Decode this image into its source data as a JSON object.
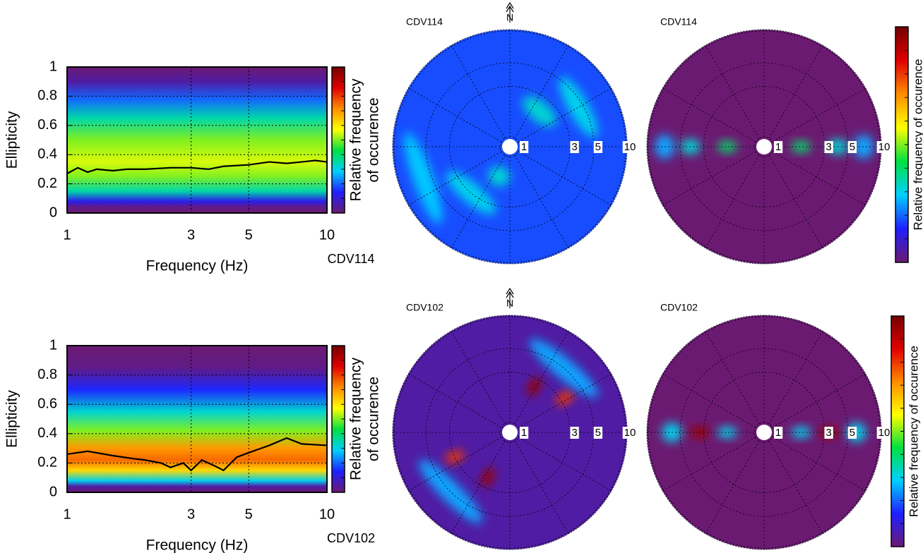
{
  "colormap": [
    "#6b1a72",
    "#1f1fff",
    "#00d0ff",
    "#00e040",
    "#ffff00",
    "#ff8c00",
    "#e00000",
    "#720000"
  ],
  "chart_data": [
    {
      "type": "heatmap",
      "station": "CDV114",
      "xlabel": "Frequency (Hz)",
      "ylabel": "Ellipticity",
      "colorbar_label": [
        "Relative frequency",
        "of occurence"
      ],
      "xlim": [
        1,
        10
      ],
      "xscale": "log",
      "xticks": [
        1,
        3,
        5,
        10
      ],
      "ylim": [
        0,
        1
      ],
      "yticks": [
        0,
        0.2,
        0.4,
        0.6,
        0.8,
        1
      ],
      "grid": true,
      "density": {
        "ellipticity": [
          1,
          0.9,
          0.78,
          0.65,
          0.5,
          0.35,
          0.25,
          0.15,
          0.08,
          0.04,
          0
        ],
        "level": [
          0,
          0.05,
          0.2,
          0.35,
          0.5,
          0.55,
          0.5,
          0.35,
          0.12,
          0.02,
          0
        ]
      },
      "series": [
        {
          "color": "#000000",
          "x": [
            1,
            1.1,
            1.2,
            1.3,
            1.5,
            1.7,
            2,
            2.5,
            3,
            3.5,
            4,
            5,
            6,
            7,
            8,
            9,
            10
          ],
          "values": [
            0.27,
            0.31,
            0.28,
            0.3,
            0.29,
            0.3,
            0.3,
            0.31,
            0.31,
            0.3,
            0.32,
            0.33,
            0.35,
            0.34,
            0.35,
            0.36,
            0.35
          ]
        }
      ]
    },
    {
      "type": "polar",
      "station": "CDV114",
      "north": "N",
      "rlim": [
        1,
        10
      ],
      "rscale": "log",
      "rticks": [
        1,
        3,
        5,
        10
      ],
      "background": 0.18,
      "peaks": [
        {
          "azimuth": 200,
          "frequency": 1.6,
          "level": 0.32,
          "spread": 40
        },
        {
          "azimuth": 40,
          "frequency": 2.2,
          "level": 0.32,
          "spread": 50
        },
        {
          "azimuth": 220,
          "frequency": 3,
          "level": 0.3,
          "spread": 60
        },
        {
          "azimuth": 60,
          "frequency": 4.5,
          "level": 0.3,
          "spread": 50
        },
        {
          "azimuth": 250,
          "frequency": 6,
          "level": 0.28,
          "spread": 60
        }
      ]
    },
    {
      "type": "polar",
      "station": "CDV114",
      "rlim": [
        1,
        10
      ],
      "rscale": "log",
      "rticks": [
        1,
        3,
        5,
        10
      ],
      "background": 0.0,
      "colorbar_label": "Relative frequency of occurence",
      "peaks": [
        {
          "azimuth": 90,
          "frequency": 1.8,
          "level": 0.4,
          "spread": 8
        },
        {
          "azimuth": 90,
          "frequency": 4,
          "level": 0.32,
          "spread": 12
        },
        {
          "azimuth": 90,
          "frequency": 7,
          "level": 0.25,
          "spread": 14
        },
        {
          "azimuth": 270,
          "frequency": 1.8,
          "level": 0.4,
          "spread": 8
        },
        {
          "azimuth": 270,
          "frequency": 4,
          "level": 0.32,
          "spread": 12
        },
        {
          "azimuth": 270,
          "frequency": 7,
          "level": 0.25,
          "spread": 14
        }
      ]
    },
    {
      "type": "heatmap",
      "station": "CDV102",
      "xlabel": "Frequency (Hz)",
      "ylabel": "Ellipticity",
      "colorbar_label": [
        "Relative frequency",
        "of occurence"
      ],
      "xlim": [
        1,
        10
      ],
      "xscale": "log",
      "xticks": [
        1,
        3,
        5,
        10
      ],
      "ylim": [
        0,
        1
      ],
      "yticks": [
        0,
        0.2,
        0.4,
        0.6,
        0.8,
        1
      ],
      "grid": true,
      "density": {
        "ellipticity": [
          1,
          0.85,
          0.7,
          0.55,
          0.42,
          0.3,
          0.22,
          0.15,
          0.08,
          0.04,
          0
        ],
        "level": [
          0,
          0.02,
          0.15,
          0.32,
          0.5,
          0.7,
          0.75,
          0.62,
          0.3,
          0.05,
          0
        ]
      },
      "series": [
        {
          "color": "#000000",
          "x": [
            1,
            1.2,
            1.5,
            1.8,
            2,
            2.3,
            2.5,
            2.8,
            3,
            3.3,
            3.7,
            4,
            4.5,
            5,
            6,
            7,
            8,
            10
          ],
          "values": [
            0.26,
            0.28,
            0.25,
            0.23,
            0.22,
            0.2,
            0.17,
            0.2,
            0.15,
            0.22,
            0.18,
            0.15,
            0.24,
            0.27,
            0.32,
            0.37,
            0.33,
            0.32
          ]
        }
      ]
    },
    {
      "type": "polar",
      "station": "CDV102",
      "north": "N",
      "rlim": [
        1,
        10
      ],
      "rscale": "log",
      "rticks": [
        1,
        3,
        5,
        10
      ],
      "background": 0.05,
      "peaks": [
        {
          "azimuth": 28,
          "frequency": 2.5,
          "level": 0.95,
          "spread": 10
        },
        {
          "azimuth": 58,
          "frequency": 3.3,
          "level": 0.8,
          "spread": 10
        },
        {
          "azimuth": 206,
          "frequency": 2.4,
          "level": 0.95,
          "spread": 10
        },
        {
          "azimuth": 246,
          "frequency": 3,
          "level": 0.8,
          "spread": 10
        },
        {
          "azimuth": 40,
          "frequency": 5,
          "level": 0.25,
          "spread": 60
        },
        {
          "azimuth": 225,
          "frequency": 5,
          "level": 0.25,
          "spread": 60
        }
      ]
    },
    {
      "type": "polar",
      "station": "CDV102",
      "rlim": [
        1,
        10
      ],
      "rscale": "log",
      "rticks": [
        1,
        3,
        5,
        10
      ],
      "background": 0.0,
      "colorbar_label": "Relative frequency of occurence",
      "peaks": [
        {
          "azimuth": 270,
          "frequency": 3.3,
          "level": 0.95,
          "spread": 5
        },
        {
          "azimuth": 90,
          "frequency": 3.3,
          "level": 0.95,
          "spread": 5
        },
        {
          "azimuth": 270,
          "frequency": 6,
          "level": 0.3,
          "spread": 12
        },
        {
          "azimuth": 90,
          "frequency": 6,
          "level": 0.3,
          "spread": 12
        },
        {
          "azimuth": 270,
          "frequency": 1.8,
          "level": 0.3,
          "spread": 8
        },
        {
          "azimuth": 90,
          "frequency": 1.8,
          "level": 0.3,
          "spread": 8
        }
      ]
    }
  ]
}
